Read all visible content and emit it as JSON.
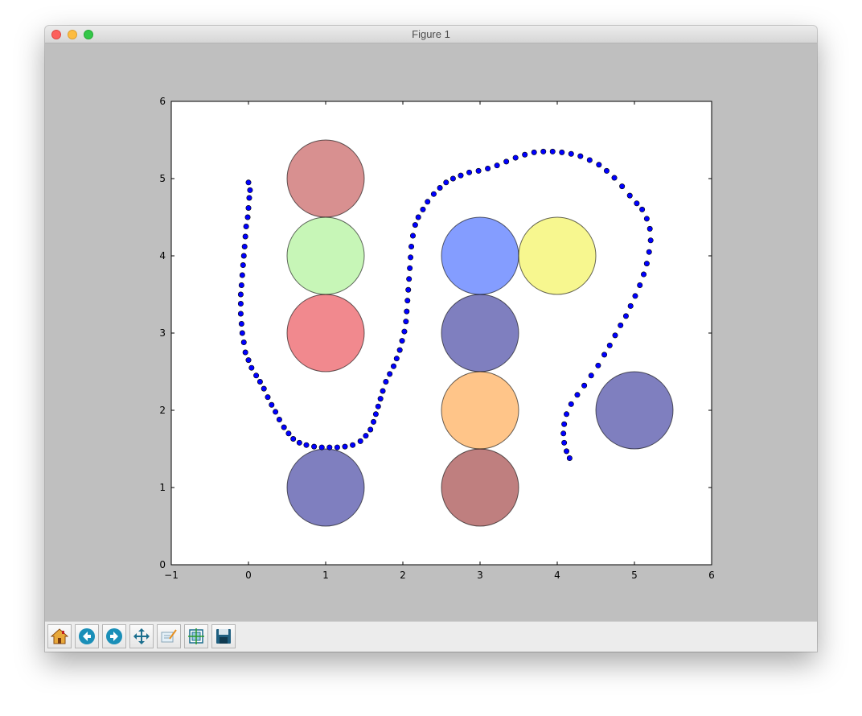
{
  "window": {
    "title": "Figure 1"
  },
  "toolbar": {
    "buttons": [
      {
        "name": "home-button",
        "icon": "home-icon"
      },
      {
        "name": "back-button",
        "icon": "back-arrow-icon"
      },
      {
        "name": "forward-button",
        "icon": "forward-arrow-icon"
      },
      {
        "name": "pan-button",
        "icon": "move-arrows-icon"
      },
      {
        "name": "zoom-button",
        "icon": "zoom-rect-icon"
      },
      {
        "name": "subplots-button",
        "icon": "subplots-config-icon"
      },
      {
        "name": "save-button",
        "icon": "floppy-disk-icon"
      }
    ]
  },
  "chart_data": {
    "type": "scatter",
    "title": "",
    "xlabel": "",
    "ylabel": "",
    "xlim": [
      -1,
      6
    ],
    "ylim": [
      0,
      6
    ],
    "xticks": [
      "−1",
      "0",
      "1",
      "2",
      "3",
      "4",
      "5",
      "6"
    ],
    "yticks": [
      "0",
      "1",
      "2",
      "3",
      "4",
      "5",
      "6"
    ],
    "grid": false,
    "marker_color": "#0000ff",
    "circles": [
      {
        "cx": 1,
        "cy": 5,
        "r": 0.5,
        "color": "#b22222"
      },
      {
        "cx": 1,
        "cy": 4,
        "r": 0.5,
        "color": "#90ee70"
      },
      {
        "cx": 1,
        "cy": 3,
        "r": 0.5,
        "color": "#e4141e"
      },
      {
        "cx": 1,
        "cy": 1,
        "r": 0.5,
        "color": "#000080"
      },
      {
        "cx": 3,
        "cy": 4,
        "r": 0.5,
        "color": "#0a3cff"
      },
      {
        "cx": 3,
        "cy": 3,
        "r": 0.5,
        "color": "#000080"
      },
      {
        "cx": 3,
        "cy": 2,
        "r": 0.5,
        "color": "#ff8c14"
      },
      {
        "cx": 3,
        "cy": 1,
        "r": 0.5,
        "color": "#800000"
      },
      {
        "cx": 4,
        "cy": 4,
        "r": 0.5,
        "color": "#f0f020"
      },
      {
        "cx": 5,
        "cy": 2,
        "r": 0.5,
        "color": "#000080"
      }
    ],
    "path": [
      [
        0.0,
        4.95
      ],
      [
        0.02,
        4.85
      ],
      [
        0.01,
        4.75
      ],
      [
        0.0,
        4.62
      ],
      [
        -0.01,
        4.5
      ],
      [
        -0.03,
        4.38
      ],
      [
        -0.04,
        4.25
      ],
      [
        -0.05,
        4.12
      ],
      [
        -0.06,
        4.0
      ],
      [
        -0.07,
        3.88
      ],
      [
        -0.08,
        3.75
      ],
      [
        -0.09,
        3.62
      ],
      [
        -0.1,
        3.5
      ],
      [
        -0.1,
        3.38
      ],
      [
        -0.1,
        3.25
      ],
      [
        -0.09,
        3.12
      ],
      [
        -0.08,
        3.0
      ],
      [
        -0.06,
        2.88
      ],
      [
        -0.04,
        2.75
      ],
      [
        0.0,
        2.65
      ],
      [
        0.04,
        2.55
      ],
      [
        0.1,
        2.45
      ],
      [
        0.15,
        2.37
      ],
      [
        0.2,
        2.28
      ],
      [
        0.25,
        2.17
      ],
      [
        0.3,
        2.07
      ],
      [
        0.35,
        1.98
      ],
      [
        0.4,
        1.88
      ],
      [
        0.46,
        1.78
      ],
      [
        0.52,
        1.7
      ],
      [
        0.58,
        1.63
      ],
      [
        0.66,
        1.58
      ],
      [
        0.75,
        1.55
      ],
      [
        0.85,
        1.53
      ],
      [
        0.95,
        1.52
      ],
      [
        1.05,
        1.52
      ],
      [
        1.15,
        1.52
      ],
      [
        1.25,
        1.53
      ],
      [
        1.35,
        1.55
      ],
      [
        1.45,
        1.6
      ],
      [
        1.52,
        1.67
      ],
      [
        1.58,
        1.75
      ],
      [
        1.62,
        1.85
      ],
      [
        1.65,
        1.95
      ],
      [
        1.68,
        2.05
      ],
      [
        1.71,
        2.15
      ],
      [
        1.74,
        2.25
      ],
      [
        1.78,
        2.37
      ],
      [
        1.83,
        2.47
      ],
      [
        1.88,
        2.57
      ],
      [
        1.92,
        2.67
      ],
      [
        1.96,
        2.78
      ],
      [
        1.99,
        2.9
      ],
      [
        2.02,
        3.02
      ],
      [
        2.04,
        3.15
      ],
      [
        2.05,
        3.28
      ],
      [
        2.06,
        3.42
      ],
      [
        2.07,
        3.56
      ],
      [
        2.08,
        3.7
      ],
      [
        2.09,
        3.84
      ],
      [
        2.1,
        3.98
      ],
      [
        2.11,
        4.12
      ],
      [
        2.13,
        4.26
      ],
      [
        2.16,
        4.4
      ],
      [
        2.2,
        4.5
      ],
      [
        2.26,
        4.6
      ],
      [
        2.32,
        4.7
      ],
      [
        2.4,
        4.8
      ],
      [
        2.48,
        4.88
      ],
      [
        2.56,
        4.95
      ],
      [
        2.65,
        5.0
      ],
      [
        2.75,
        5.04
      ],
      [
        2.86,
        5.08
      ],
      [
        2.98,
        5.1
      ],
      [
        3.1,
        5.13
      ],
      [
        3.22,
        5.17
      ],
      [
        3.34,
        5.22
      ],
      [
        3.46,
        5.27
      ],
      [
        3.58,
        5.31
      ],
      [
        3.7,
        5.34
      ],
      [
        3.82,
        5.35
      ],
      [
        3.94,
        5.35
      ],
      [
        4.06,
        5.34
      ],
      [
        4.18,
        5.32
      ],
      [
        4.3,
        5.29
      ],
      [
        4.42,
        5.24
      ],
      [
        4.54,
        5.18
      ],
      [
        4.64,
        5.1
      ],
      [
        4.74,
        5.01
      ],
      [
        4.84,
        4.9
      ],
      [
        4.94,
        4.78
      ],
      [
        5.03,
        4.68
      ],
      [
        5.1,
        4.6
      ],
      [
        5.16,
        4.48
      ],
      [
        5.2,
        4.35
      ],
      [
        5.21,
        4.2
      ],
      [
        5.19,
        4.05
      ],
      [
        5.16,
        3.9
      ],
      [
        5.12,
        3.76
      ],
      [
        5.07,
        3.62
      ],
      [
        5.01,
        3.48
      ],
      [
        4.95,
        3.35
      ],
      [
        4.89,
        3.22
      ],
      [
        4.82,
        3.1
      ],
      [
        4.75,
        2.97
      ],
      [
        4.68,
        2.84
      ],
      [
        4.61,
        2.72
      ],
      [
        4.53,
        2.58
      ],
      [
        4.44,
        2.45
      ],
      [
        4.35,
        2.32
      ],
      [
        4.26,
        2.2
      ],
      [
        4.18,
        2.08
      ],
      [
        4.12,
        1.95
      ],
      [
        4.09,
        1.82
      ],
      [
        4.08,
        1.7
      ],
      [
        4.09,
        1.58
      ],
      [
        4.12,
        1.47
      ],
      [
        4.16,
        1.38
      ]
    ]
  }
}
